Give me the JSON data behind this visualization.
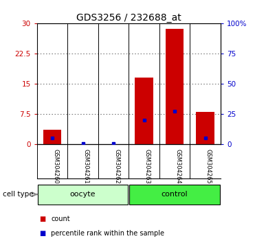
{
  "title": "GDS3256 / 232688_at",
  "samples": [
    "GSM304260",
    "GSM304261",
    "GSM304262",
    "GSM304263",
    "GSM304264",
    "GSM304265"
  ],
  "count_values": [
    3.5,
    0.05,
    0.05,
    16.5,
    28.5,
    8.0
  ],
  "percentile_values": [
    5.0,
    0.5,
    0.5,
    20.0,
    27.0,
    5.0
  ],
  "groups": [
    {
      "label": "oocyte",
      "indices": [
        0,
        1,
        2
      ],
      "color": "#ccffcc"
    },
    {
      "label": "control",
      "indices": [
        3,
        4,
        5
      ],
      "color": "#44ee44"
    }
  ],
  "ylim_left": [
    0,
    30
  ],
  "ylim_right": [
    0,
    100
  ],
  "yticks_left": [
    0,
    7.5,
    15,
    22.5,
    30
  ],
  "yticks_right": [
    0,
    25,
    50,
    75,
    100
  ],
  "ytick_labels_left": [
    "0",
    "7.5",
    "15",
    "22.5",
    "30"
  ],
  "ytick_labels_right": [
    "0",
    "25",
    "50",
    "75",
    "100%"
  ],
  "bar_color": "#cc0000",
  "marker_color": "#0000cc",
  "title_fontsize": 10,
  "tick_label_fontsize": 7.5,
  "axis_label_color_left": "#cc0000",
  "axis_label_color_right": "#0000cc",
  "background_color": "#ffffff",
  "plot_bg_color": "#ffffff",
  "grid_color": "#555555",
  "bar_width": 0.6,
  "legend_count_label": "count",
  "legend_pct_label": "percentile rank within the sample",
  "cell_type_label": "cell type",
  "sample_bg_color": "#cccccc"
}
